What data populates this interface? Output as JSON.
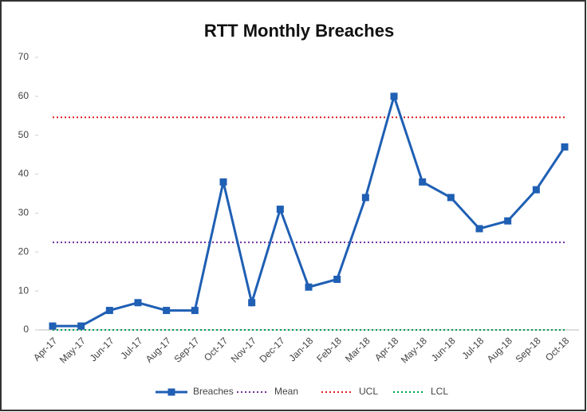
{
  "chart_data": {
    "type": "line",
    "title": "RTT Monthly Breaches",
    "categories": [
      "Apr-17",
      "May-17",
      "Jun-17",
      "Jul-17",
      "Aug-17",
      "Sep-17",
      "Oct-17",
      "Nov-17",
      "Dec-17",
      "Jan-18",
      "Feb-18",
      "Mar-18",
      "Apr-18",
      "May-18",
      "Jun-18",
      "Jul-18",
      "Aug-18",
      "Sep-18",
      "Oct-18"
    ],
    "series": [
      {
        "name": "Breaches",
        "color": "#1f5fb4",
        "style": "solid",
        "marker": "square",
        "values": [
          1,
          1,
          5,
          7,
          5,
          5,
          38,
          7,
          31,
          11,
          13,
          34,
          60,
          38,
          34,
          26,
          28,
          36,
          47
        ]
      },
      {
        "name": "Mean",
        "color": "#7030a0",
        "style": "dotted",
        "values": [
          22.5,
          22.5,
          22.5,
          22.5,
          22.5,
          22.5,
          22.5,
          22.5,
          22.5,
          22.5,
          22.5,
          22.5,
          22.5,
          22.5,
          22.5,
          22.5,
          22.5,
          22.5,
          22.5
        ]
      },
      {
        "name": "UCL",
        "color": "#e02020",
        "style": "dotted",
        "values": [
          54.6,
          54.6,
          54.6,
          54.6,
          54.6,
          54.6,
          54.6,
          54.6,
          54.6,
          54.6,
          54.6,
          54.6,
          54.6,
          54.6,
          54.6,
          54.6,
          54.6,
          54.6,
          54.6
        ]
      },
      {
        "name": "LCL",
        "color": "#00a050",
        "style": "dotted",
        "values": [
          0,
          0,
          0,
          0,
          0,
          0,
          0,
          0,
          0,
          0,
          0,
          0,
          0,
          0,
          0,
          0,
          0,
          0,
          0
        ]
      }
    ],
    "ylim": [
      0,
      70
    ],
    "yticks": [
      0,
      10,
      20,
      30,
      40,
      50,
      60,
      70
    ],
    "grid": false,
    "legend": "bottom"
  }
}
